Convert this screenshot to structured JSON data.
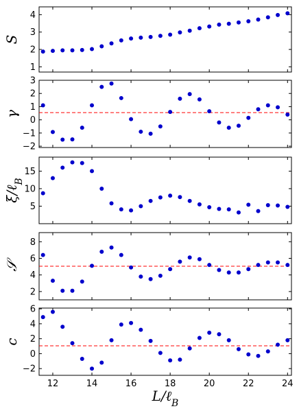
{
  "chart_data": [
    {
      "type": "scatter",
      "ylabel": "S",
      "xlim": [
        11.3,
        24.2
      ],
      "ylim": [
        0.7,
        4.45
      ],
      "yticks": [
        1,
        2,
        3,
        4
      ],
      "x": [
        11.5,
        12.0,
        12.5,
        13.0,
        13.5,
        14.0,
        14.5,
        15.0,
        15.5,
        16.0,
        16.5,
        17.0,
        17.5,
        18.0,
        18.5,
        19.0,
        19.5,
        20.0,
        20.5,
        21.0,
        21.5,
        22.0,
        22.5,
        23.0,
        23.5,
        24.0
      ],
      "series": [
        {
          "values": [
            1.88,
            1.92,
            1.95,
            1.95,
            1.97,
            2.02,
            2.18,
            2.35,
            2.52,
            2.63,
            2.68,
            2.72,
            2.78,
            2.85,
            2.98,
            3.08,
            3.22,
            3.32,
            3.43,
            3.48,
            3.55,
            3.62,
            3.72,
            3.85,
            3.98,
            4.08
          ],
          "color": "#0000cc"
        }
      ]
    },
    {
      "type": "scatter",
      "ylabel": "γ",
      "xlim": [
        11.3,
        24.2
      ],
      "ylim": [
        -2.1,
        3.0
      ],
      "yticks": [
        -2,
        -1,
        0,
        1,
        2,
        3
      ],
      "x": [
        11.5,
        12.0,
        12.5,
        13.0,
        13.5,
        14.0,
        14.5,
        15.0,
        15.5,
        16.0,
        16.5,
        17.0,
        17.5,
        18.0,
        18.5,
        19.0,
        19.5,
        20.0,
        20.5,
        21.0,
        21.5,
        22.0,
        22.5,
        23.0,
        23.5,
        24.0
      ],
      "series": [
        {
          "values": [
            1.1,
            -0.92,
            -1.5,
            -1.48,
            -0.6,
            1.1,
            2.5,
            2.75,
            1.65,
            0.05,
            -0.9,
            -1.05,
            -0.5,
            0.6,
            1.6,
            1.95,
            1.55,
            0.65,
            -0.2,
            -0.6,
            -0.45,
            0.15,
            0.8,
            1.1,
            0.95,
            0.4
          ],
          "color": "#0000cc"
        }
      ],
      "reference_line": {
        "y": 0.55,
        "color": "#ff0000",
        "style": "dashed"
      }
    },
    {
      "type": "scatter",
      "ylabel": "ξ/ℓ_B",
      "xlim": [
        11.3,
        24.2
      ],
      "ylim": [
        0,
        19
      ],
      "yticks": [
        5,
        10,
        15
      ],
      "x": [
        11.5,
        12.0,
        12.5,
        13.0,
        13.5,
        14.0,
        14.5,
        15.0,
        15.5,
        16.0,
        16.5,
        17.0,
        17.5,
        18.0,
        18.5,
        19.0,
        19.5,
        20.0,
        20.5,
        21.0,
        21.5,
        22.0,
        22.5,
        23.0,
        23.5,
        24.0
      ],
      "series": [
        {
          "values": [
            8.7,
            13.0,
            16.0,
            17.5,
            17.3,
            15.0,
            10.0,
            5.8,
            4.1,
            3.8,
            5.0,
            6.5,
            7.5,
            8.0,
            7.6,
            6.5,
            5.5,
            4.7,
            4.2,
            4.1,
            3.2,
            5.4,
            3.6,
            5.3,
            5.2,
            4.8
          ],
          "color": "#0000cc"
        }
      ]
    },
    {
      "type": "scatter",
      "ylabel": "𝒮",
      "xlim": [
        11.3,
        24.2
      ],
      "ylim": [
        1.0,
        9.1
      ],
      "yticks": [
        2,
        4,
        6,
        8
      ],
      "x": [
        11.5,
        12.0,
        12.5,
        13.0,
        13.5,
        14.0,
        14.5,
        15.0,
        15.5,
        16.0,
        16.5,
        17.0,
        17.5,
        18.0,
        18.5,
        19.0,
        19.5,
        20.0,
        20.5,
        21.0,
        21.5,
        22.0,
        22.5,
        23.0,
        23.5,
        24.0
      ],
      "series": [
        {
          "values": [
            6.4,
            3.3,
            2.1,
            2.1,
            3.2,
            5.1,
            6.8,
            7.3,
            6.4,
            4.9,
            3.8,
            3.5,
            3.9,
            4.7,
            5.6,
            6.1,
            5.9,
            5.2,
            4.6,
            4.3,
            4.3,
            4.7,
            5.2,
            5.5,
            5.5,
            5.2
          ],
          "color": "#0000cc"
        }
      ],
      "reference_line": {
        "y": 5.05,
        "color": "#ff0000",
        "style": "dashed"
      }
    },
    {
      "type": "scatter",
      "ylabel": "c",
      "xlabel": "L/ℓ_B",
      "xlim": [
        11.3,
        24.2
      ],
      "xticks": [
        12,
        14,
        16,
        18,
        20,
        22,
        24
      ],
      "ylim": [
        -2.9,
        6.1
      ],
      "yticks": [
        -2,
        0,
        2,
        4,
        6
      ],
      "x": [
        11.5,
        12.0,
        12.5,
        13.0,
        13.5,
        14.0,
        14.5,
        15.0,
        15.5,
        16.0,
        16.5,
        17.0,
        17.5,
        18.0,
        18.5,
        19.0,
        19.5,
        20.0,
        20.5,
        21.0,
        21.5,
        22.0,
        22.5,
        23.0,
        23.5,
        24.0
      ],
      "series": [
        {
          "values": [
            4.9,
            5.6,
            3.6,
            1.4,
            -0.7,
            -2.0,
            -1.2,
            1.8,
            3.9,
            4.1,
            3.2,
            1.7,
            0.1,
            -0.9,
            -0.8,
            0.7,
            2.1,
            2.8,
            2.6,
            1.8,
            0.6,
            -0.1,
            -0.3,
            0.3,
            1.2,
            1.8
          ],
          "color": "#0000cc"
        }
      ],
      "reference_line": {
        "y": 1.05,
        "color": "#ff0000",
        "style": "dashed"
      }
    }
  ]
}
